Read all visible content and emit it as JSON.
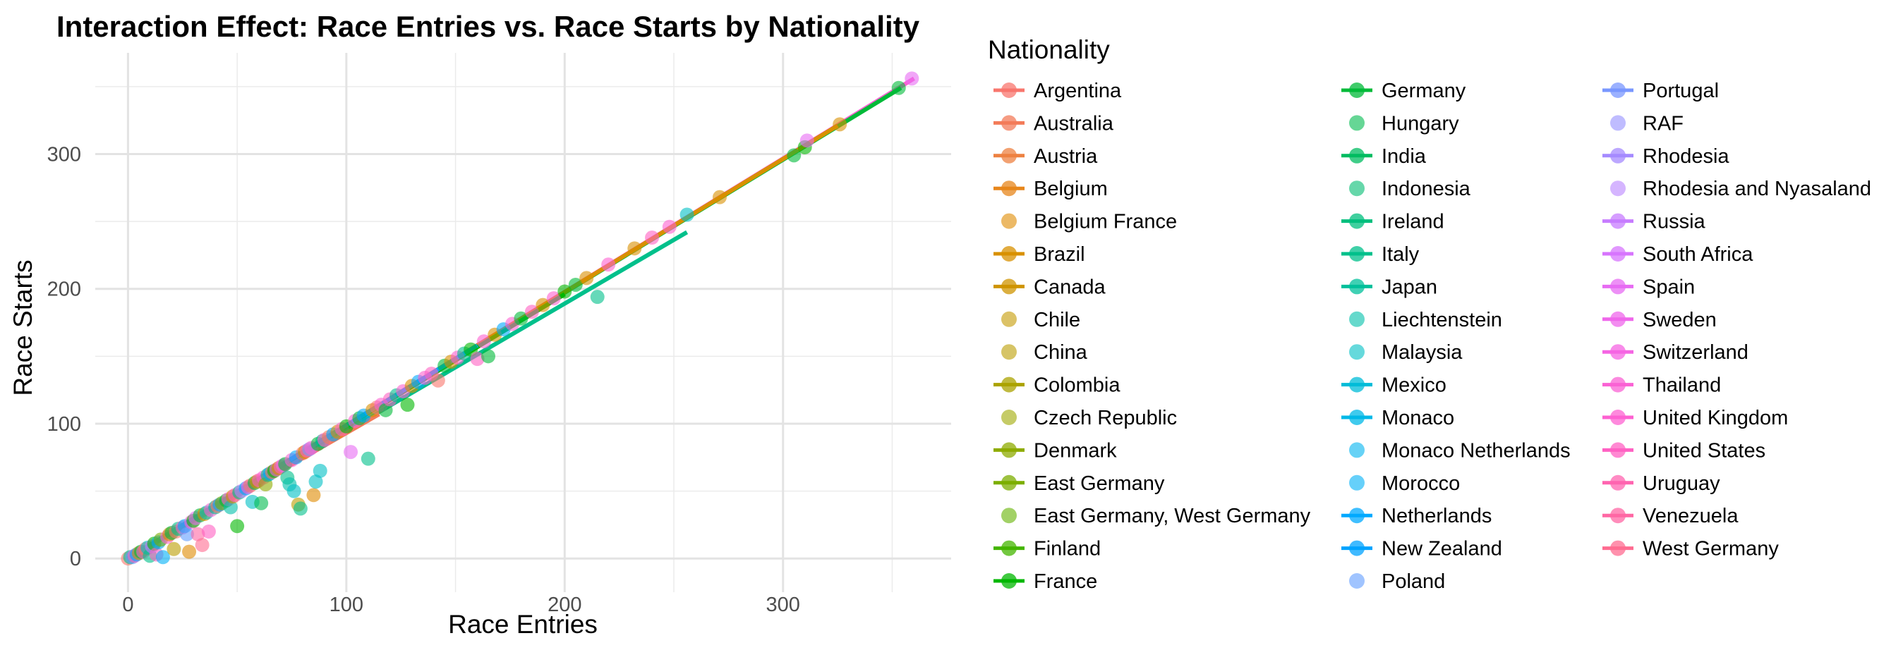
{
  "chart_data": {
    "type": "scatter",
    "title": "Interaction Effect: Race Entries vs. Race Starts by Nationality",
    "xlabel": "Race Entries",
    "ylabel": "Race Starts",
    "xlim": [
      -15,
      377
    ],
    "ylim": [
      -25,
      375
    ],
    "x_ticks": [
      0,
      100,
      200,
      300
    ],
    "y_ticks": [
      0,
      100,
      200,
      300
    ],
    "grid": true,
    "legend": {
      "title": "Nationality",
      "placement": "right",
      "entries": [
        {
          "label": "Argentina",
          "line": true,
          "color": "#F8766D"
        },
        {
          "label": "Australia",
          "line": true,
          "color": "#F37B59"
        },
        {
          "label": "Austria",
          "line": true,
          "color": "#ED8141"
        },
        {
          "label": "Belgium",
          "line": true,
          "color": "#E7861B"
        },
        {
          "label": "Belgium France",
          "line": false,
          "color": "#DF8B00"
        },
        {
          "label": "Brazil",
          "line": true,
          "color": "#D89000"
        },
        {
          "label": "Canada",
          "line": true,
          "color": "#CF9400"
        },
        {
          "label": "Chile",
          "line": false,
          "color": "#C49A00"
        },
        {
          "label": "China",
          "line": false,
          "color": "#BB9D00"
        },
        {
          "label": "Colombia",
          "line": true,
          "color": "#ABA300"
        },
        {
          "label": "Czech Republic",
          "line": false,
          "color": "#9FA800"
        },
        {
          "label": "Denmark",
          "line": true,
          "color": "#8EAB00"
        },
        {
          "label": "East Germany",
          "line": true,
          "color": "#7CAE00"
        },
        {
          "label": "East Germany, West Germany",
          "line": false,
          "color": "#64B200"
        },
        {
          "label": "Finland",
          "line": true,
          "color": "#44B500"
        },
        {
          "label": "France",
          "line": true,
          "color": "#00B700"
        },
        {
          "label": "Germany",
          "line": true,
          "color": "#00BA38"
        },
        {
          "label": "Hungary",
          "line": false,
          "color": "#00BB4E"
        },
        {
          "label": "India",
          "line": true,
          "color": "#00BC60"
        },
        {
          "label": "Indonesia",
          "line": false,
          "color": "#00BD72"
        },
        {
          "label": "Ireland",
          "line": true,
          "color": "#00BF7D"
        },
        {
          "label": "Italy",
          "line": true,
          "color": "#00C08B"
        },
        {
          "label": "Japan",
          "line": true,
          "color": "#00C09B"
        },
        {
          "label": "Liechtenstein",
          "line": false,
          "color": "#00BFAA"
        },
        {
          "label": "Malaysia",
          "line": false,
          "color": "#00BFC4"
        },
        {
          "label": "Mexico",
          "line": true,
          "color": "#00BCD8"
        },
        {
          "label": "Monaco",
          "line": true,
          "color": "#00B8E7"
        },
        {
          "label": "Monaco Netherlands",
          "line": false,
          "color": "#00B4F0"
        },
        {
          "label": "Morocco",
          "line": false,
          "color": "#00B0F6"
        },
        {
          "label": "Netherlands",
          "line": true,
          "color": "#00A9FF"
        },
        {
          "label": "New Zealand",
          "line": true,
          "color": "#00A3FF"
        },
        {
          "label": "Poland",
          "line": false,
          "color": "#619CFF"
        },
        {
          "label": "Portugal",
          "line": true,
          "color": "#7997FF"
        },
        {
          "label": "RAF",
          "line": false,
          "color": "#9590FF"
        },
        {
          "label": "Rhodesia",
          "line": true,
          "color": "#A58AFF"
        },
        {
          "label": "Rhodesia and Nyasaland",
          "line": false,
          "color": "#B983FF"
        },
        {
          "label": "Russia",
          "line": true,
          "color": "#C77CFF"
        },
        {
          "label": "South Africa",
          "line": true,
          "color": "#D774FD"
        },
        {
          "label": "Spain",
          "line": true,
          "color": "#E76BF3"
        },
        {
          "label": "Sweden",
          "line": true,
          "color": "#EF67EB"
        },
        {
          "label": "Switzerland",
          "line": true,
          "color": "#F564E3"
        },
        {
          "label": "Thailand",
          "line": true,
          "color": "#FA62D4"
        },
        {
          "label": "United Kingdom",
          "line": true,
          "color": "#FD61D1"
        },
        {
          "label": "United States",
          "line": true,
          "color": "#FF61C3"
        },
        {
          "label": "Uruguay",
          "line": true,
          "color": "#FF64B0"
        },
        {
          "label": "Venezuela",
          "line": true,
          "color": "#FF67A4"
        },
        {
          "label": "West Germany",
          "line": true,
          "color": "#FF6C91"
        }
      ]
    },
    "trend_lines": [
      {
        "nationality": "United Kingdom",
        "x": [
          0,
          360
        ],
        "y": [
          0,
          356
        ],
        "color": "#FD61D1"
      },
      {
        "nationality": "Germany",
        "x": [
          0,
          354
        ],
        "y": [
          0,
          349
        ],
        "color": "#00BA38"
      },
      {
        "nationality": "Brazil",
        "x": [
          0,
          325
        ],
        "y": [
          0,
          321
        ],
        "color": "#D89000"
      },
      {
        "nationality": "Italy",
        "x": [
          0,
          256
        ],
        "y": [
          0,
          242
        ],
        "color": "#00C08B"
      },
      {
        "nationality": "Australia",
        "x": [
          0,
          115
        ],
        "y": [
          0,
          107
        ],
        "color": "#F37B59"
      },
      {
        "nationality": "France",
        "x": [
          0,
          200
        ],
        "y": [
          0,
          196
        ],
        "color": "#00B700"
      },
      {
        "nationality": "Netherlands",
        "x": [
          0,
          160
        ],
        "y": [
          0,
          158
        ],
        "color": "#00A9FF"
      }
    ],
    "points": [
      {
        "x": 0,
        "y": 0,
        "c": "#F8766D"
      },
      {
        "x": 1,
        "y": 1,
        "c": "#00C08B"
      },
      {
        "x": 2,
        "y": 1,
        "c": "#619CFF"
      },
      {
        "x": 3,
        "y": 2,
        "c": "#FF61C3"
      },
      {
        "x": 4,
        "y": 3,
        "c": "#00A9FF"
      },
      {
        "x": 5,
        "y": 4,
        "c": "#D89000"
      },
      {
        "x": 6,
        "y": 5,
        "c": "#00BA38"
      },
      {
        "x": 7,
        "y": 5,
        "c": "#FD61D1"
      },
      {
        "x": 8,
        "y": 7,
        "c": "#F8766D"
      },
      {
        "x": 9,
        "y": 8,
        "c": "#00BFC4"
      },
      {
        "x": 10,
        "y": 2,
        "c": "#00C08B"
      },
      {
        "x": 11,
        "y": 9,
        "c": "#C77CFF"
      },
      {
        "x": 12,
        "y": 11,
        "c": "#00B700"
      },
      {
        "x": 13,
        "y": 3,
        "c": "#FF61C3"
      },
      {
        "x": 14,
        "y": 12,
        "c": "#00A9FF"
      },
      {
        "x": 15,
        "y": 14,
        "c": "#7CAE00"
      },
      {
        "x": 16,
        "y": 1,
        "c": "#00B0F6"
      },
      {
        "x": 18,
        "y": 16,
        "c": "#FD61D1"
      },
      {
        "x": 19,
        "y": 18,
        "c": "#D89000"
      },
      {
        "x": 20,
        "y": 19,
        "c": "#00BA38"
      },
      {
        "x": 21,
        "y": 7,
        "c": "#BB9D00"
      },
      {
        "x": 22,
        "y": 20,
        "c": "#F8766D"
      },
      {
        "x": 23,
        "y": 22,
        "c": "#00C08B"
      },
      {
        "x": 25,
        "y": 23,
        "c": "#FF61C3"
      },
      {
        "x": 26,
        "y": 24,
        "c": "#00A9FF"
      },
      {
        "x": 27,
        "y": 18,
        "c": "#619CFF"
      },
      {
        "x": 28,
        "y": 5,
        "c": "#DF8B00"
      },
      {
        "x": 29,
        "y": 27,
        "c": "#FD61D1"
      },
      {
        "x": 30,
        "y": 28,
        "c": "#00B700"
      },
      {
        "x": 31,
        "y": 30,
        "c": "#E76BF3"
      },
      {
        "x": 32,
        "y": 18,
        "c": "#FF67A4"
      },
      {
        "x": 33,
        "y": 32,
        "c": "#00BA38"
      },
      {
        "x": 34,
        "y": 10,
        "c": "#FF6C91"
      },
      {
        "x": 35,
        "y": 33,
        "c": "#D89000"
      },
      {
        "x": 36,
        "y": 34,
        "c": "#00BFC4"
      },
      {
        "x": 37,
        "y": 20,
        "c": "#FF61C3"
      },
      {
        "x": 38,
        "y": 36,
        "c": "#FD61D1"
      },
      {
        "x": 40,
        "y": 38,
        "c": "#00C08B"
      },
      {
        "x": 41,
        "y": 39,
        "c": "#F8766D"
      },
      {
        "x": 42,
        "y": 40,
        "c": "#00A9FF"
      },
      {
        "x": 43,
        "y": 41,
        "c": "#7CAE00"
      },
      {
        "x": 45,
        "y": 43,
        "c": "#00BA38"
      },
      {
        "x": 46,
        "y": 44,
        "c": "#FD61D1"
      },
      {
        "x": 47,
        "y": 38,
        "c": "#00BFAA"
      },
      {
        "x": 48,
        "y": 46,
        "c": "#D89000"
      },
      {
        "x": 49,
        "y": 47,
        "c": "#FF61C3"
      },
      {
        "x": 50,
        "y": 24,
        "c": "#00B700"
      },
      {
        "x": 51,
        "y": 49,
        "c": "#00C08B"
      },
      {
        "x": 52,
        "y": 50,
        "c": "#C77CFF"
      },
      {
        "x": 54,
        "y": 52,
        "c": "#00A9FF"
      },
      {
        "x": 55,
        "y": 53,
        "c": "#FD61D1"
      },
      {
        "x": 56,
        "y": 54,
        "c": "#F8766D"
      },
      {
        "x": 57,
        "y": 42,
        "c": "#00BFC4"
      },
      {
        "x": 58,
        "y": 56,
        "c": "#00BA38"
      },
      {
        "x": 59,
        "y": 57,
        "c": "#D89000"
      },
      {
        "x": 60,
        "y": 58,
        "c": "#FF61C3"
      },
      {
        "x": 61,
        "y": 41,
        "c": "#00BB4E"
      },
      {
        "x": 62,
        "y": 60,
        "c": "#FD61D1"
      },
      {
        "x": 63,
        "y": 55,
        "c": "#8EAB00"
      },
      {
        "x": 64,
        "y": 62,
        "c": "#00C08B"
      },
      {
        "x": 65,
        "y": 63,
        "c": "#00A9FF"
      },
      {
        "x": 66,
        "y": 64,
        "c": "#F37B59"
      },
      {
        "x": 67,
        "y": 65,
        "c": "#00B700"
      },
      {
        "x": 68,
        "y": 66,
        "c": "#FD61D1"
      },
      {
        "x": 69,
        "y": 67,
        "c": "#D89000"
      },
      {
        "x": 70,
        "y": 68,
        "c": "#FF61C3"
      },
      {
        "x": 71,
        "y": 69,
        "c": "#E76BF3"
      },
      {
        "x": 72,
        "y": 70,
        "c": "#00BA38"
      },
      {
        "x": 73,
        "y": 60,
        "c": "#00C08B"
      },
      {
        "x": 74,
        "y": 55,
        "c": "#00BFAA"
      },
      {
        "x": 75,
        "y": 73,
        "c": "#FD61D1"
      },
      {
        "x": 76,
        "y": 50,
        "c": "#00BFC4"
      },
      {
        "x": 77,
        "y": 75,
        "c": "#00A9FF"
      },
      {
        "x": 78,
        "y": 40,
        "c": "#BB9D00"
      },
      {
        "x": 79,
        "y": 37,
        "c": "#00C08B"
      },
      {
        "x": 80,
        "y": 78,
        "c": "#F8766D"
      },
      {
        "x": 81,
        "y": 79,
        "c": "#D89000"
      },
      {
        "x": 82,
        "y": 80,
        "c": "#FF61C3"
      },
      {
        "x": 83,
        "y": 81,
        "c": "#7997FF"
      },
      {
        "x": 84,
        "y": 82,
        "c": "#FD61D1"
      },
      {
        "x": 85,
        "y": 47,
        "c": "#DF8B00"
      },
      {
        "x": 86,
        "y": 57,
        "c": "#00BFC4"
      },
      {
        "x": 87,
        "y": 85,
        "c": "#00BA38"
      },
      {
        "x": 88,
        "y": 65,
        "c": "#00BFC4"
      },
      {
        "x": 89,
        "y": 87,
        "c": "#00C08B"
      },
      {
        "x": 90,
        "y": 88,
        "c": "#FD61D1"
      },
      {
        "x": 92,
        "y": 90,
        "c": "#F37B59"
      },
      {
        "x": 94,
        "y": 92,
        "c": "#00A9FF"
      },
      {
        "x": 96,
        "y": 94,
        "c": "#D89000"
      },
      {
        "x": 98,
        "y": 96,
        "c": "#FF61C3"
      },
      {
        "x": 100,
        "y": 98,
        "c": "#00B700"
      },
      {
        "x": 102,
        "y": 79,
        "c": "#E76BF3"
      },
      {
        "x": 104,
        "y": 102,
        "c": "#FD61D1"
      },
      {
        "x": 106,
        "y": 104,
        "c": "#00BA38"
      },
      {
        "x": 108,
        "y": 106,
        "c": "#00A9FF"
      },
      {
        "x": 110,
        "y": 74,
        "c": "#00C08B"
      },
      {
        "x": 112,
        "y": 110,
        "c": "#D89000"
      },
      {
        "x": 114,
        "y": 112,
        "c": "#F8766D"
      },
      {
        "x": 116,
        "y": 114,
        "c": "#FD61D1"
      },
      {
        "x": 118,
        "y": 110,
        "c": "#00BA38"
      },
      {
        "x": 120,
        "y": 118,
        "c": "#FF61C3"
      },
      {
        "x": 123,
        "y": 121,
        "c": "#00C08B"
      },
      {
        "x": 126,
        "y": 124,
        "c": "#FD61D1"
      },
      {
        "x": 128,
        "y": 114,
        "c": "#00B700"
      },
      {
        "x": 130,
        "y": 128,
        "c": "#D89000"
      },
      {
        "x": 133,
        "y": 131,
        "c": "#00A9FF"
      },
      {
        "x": 136,
        "y": 134,
        "c": "#FD61D1"
      },
      {
        "x": 139,
        "y": 137,
        "c": "#FF61C3"
      },
      {
        "x": 142,
        "y": 132,
        "c": "#F8766D"
      },
      {
        "x": 145,
        "y": 143,
        "c": "#00BA38"
      },
      {
        "x": 148,
        "y": 146,
        "c": "#D89000"
      },
      {
        "x": 151,
        "y": 149,
        "c": "#FD61D1"
      },
      {
        "x": 154,
        "y": 152,
        "c": "#00C08B"
      },
      {
        "x": 157,
        "y": 155,
        "c": "#00B700"
      },
      {
        "x": 160,
        "y": 148,
        "c": "#FF61C3"
      },
      {
        "x": 163,
        "y": 161,
        "c": "#FD61D1"
      },
      {
        "x": 165,
        "y": 150,
        "c": "#00BA38"
      },
      {
        "x": 168,
        "y": 166,
        "c": "#D89000"
      },
      {
        "x": 172,
        "y": 170,
        "c": "#00A9FF"
      },
      {
        "x": 176,
        "y": 174,
        "c": "#FD61D1"
      },
      {
        "x": 180,
        "y": 178,
        "c": "#00BA38"
      },
      {
        "x": 185,
        "y": 183,
        "c": "#FF61C3"
      },
      {
        "x": 190,
        "y": 188,
        "c": "#D89000"
      },
      {
        "x": 195,
        "y": 193,
        "c": "#FD61D1"
      },
      {
        "x": 200,
        "y": 198,
        "c": "#00B700"
      },
      {
        "x": 205,
        "y": 203,
        "c": "#00BA38"
      },
      {
        "x": 210,
        "y": 208,
        "c": "#D89000"
      },
      {
        "x": 215,
        "y": 194,
        "c": "#00C08B"
      },
      {
        "x": 220,
        "y": 218,
        "c": "#FD61D1"
      },
      {
        "x": 232,
        "y": 230,
        "c": "#D89000"
      },
      {
        "x": 240,
        "y": 238,
        "c": "#FF61C3"
      },
      {
        "x": 248,
        "y": 246,
        "c": "#FD61D1"
      },
      {
        "x": 256,
        "y": 255,
        "c": "#00BFC4"
      },
      {
        "x": 271,
        "y": 268,
        "c": "#D89000"
      },
      {
        "x": 305,
        "y": 299,
        "c": "#00BA38"
      },
      {
        "x": 310,
        "y": 305,
        "c": "#00B700"
      },
      {
        "x": 311,
        "y": 310,
        "c": "#E76BF3"
      },
      {
        "x": 326,
        "y": 322,
        "c": "#D89000"
      },
      {
        "x": 353,
        "y": 349,
        "c": "#00BA38"
      },
      {
        "x": 359,
        "y": 356,
        "c": "#E76BF3"
      }
    ]
  }
}
